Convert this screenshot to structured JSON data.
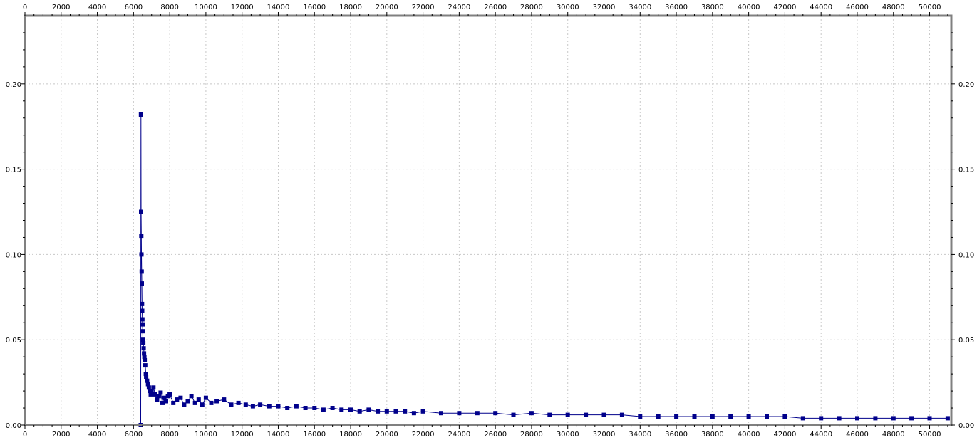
{
  "chart_data": {
    "type": "scatter",
    "title": "",
    "xlabel": "",
    "ylabel": "",
    "xlim": [
      0,
      51200
    ],
    "ylim": [
      0,
      0.24
    ],
    "x_ticks": [
      0,
      2000,
      4000,
      6000,
      8000,
      10000,
      12000,
      14000,
      16000,
      18000,
      20000,
      22000,
      24000,
      26000,
      28000,
      30000,
      32000,
      34000,
      36000,
      38000,
      40000,
      42000,
      44000,
      46000,
      48000,
      50000
    ],
    "x_tick_labels": [
      "0",
      "2000",
      "4000",
      "6000",
      "8000",
      "10000",
      "12000",
      "14000",
      "16000",
      "18000",
      "20000",
      "22000",
      "24000",
      "26000",
      "28000",
      "30000",
      "32000",
      "34000",
      "36000",
      "38000",
      "40000",
      "42000",
      "44000",
      "46000",
      "48000",
      "50000"
    ],
    "y_ticks": [
      0,
      0.05,
      0.1,
      0.15,
      0.2
    ],
    "y_tick_labels": [
      "0.00",
      "0.05",
      "0.10",
      "0.15",
      "0.20"
    ],
    "grid": true,
    "axes_mirrored": true,
    "marker": "square",
    "series": [
      {
        "color": "#00008b",
        "x": [
          6400,
          6410,
          6420,
          6430,
          6440,
          6450,
          6460,
          6470,
          6480,
          6490,
          6500,
          6510,
          6520,
          6540,
          6560,
          6580,
          6600,
          6620,
          6650,
          6680,
          6700,
          6750,
          6800,
          6850,
          6900,
          6950,
          7000,
          7100,
          7200,
          7300,
          7400,
          7500,
          7600,
          7700,
          7800,
          7900,
          8000,
          8200,
          8400,
          8600,
          8800,
          9000,
          9200,
          9400,
          9600,
          9800,
          10000,
          10300,
          10600,
          11000,
          11400,
          11800,
          12200,
          12600,
          13000,
          13500,
          14000,
          14500,
          15000,
          15500,
          16000,
          16500,
          17000,
          17500,
          18000,
          18500,
          19000,
          19500,
          20000,
          20500,
          21000,
          21500,
          22000,
          23000,
          24000,
          25000,
          26000,
          27000,
          28000,
          29000,
          30000,
          31000,
          32000,
          33000,
          34000,
          35000,
          36000,
          37000,
          38000,
          39000,
          40000,
          41000,
          42000,
          43000,
          44000,
          45000,
          46000,
          47000,
          48000,
          49000,
          50000,
          51000
        ],
        "y": [
          0.0,
          0.182,
          0.125,
          0.111,
          0.1,
          0.09,
          0.083,
          0.071,
          0.067,
          0.062,
          0.059,
          0.055,
          0.05,
          0.048,
          0.045,
          0.042,
          0.04,
          0.038,
          0.035,
          0.03,
          0.028,
          0.026,
          0.024,
          0.022,
          0.02,
          0.018,
          0.02,
          0.022,
          0.018,
          0.015,
          0.017,
          0.019,
          0.013,
          0.016,
          0.014,
          0.017,
          0.018,
          0.013,
          0.015,
          0.016,
          0.012,
          0.014,
          0.017,
          0.013,
          0.015,
          0.012,
          0.016,
          0.013,
          0.014,
          0.015,
          0.012,
          0.013,
          0.012,
          0.011,
          0.012,
          0.011,
          0.011,
          0.01,
          0.011,
          0.01,
          0.01,
          0.009,
          0.01,
          0.009,
          0.009,
          0.008,
          0.009,
          0.008,
          0.008,
          0.008,
          0.008,
          0.007,
          0.008,
          0.007,
          0.007,
          0.007,
          0.007,
          0.006,
          0.007,
          0.006,
          0.006,
          0.006,
          0.006,
          0.006,
          0.005,
          0.005,
          0.005,
          0.005,
          0.005,
          0.005,
          0.005,
          0.005,
          0.005,
          0.004,
          0.004,
          0.004,
          0.004,
          0.004,
          0.004,
          0.004,
          0.004,
          0.004
        ]
      }
    ]
  }
}
